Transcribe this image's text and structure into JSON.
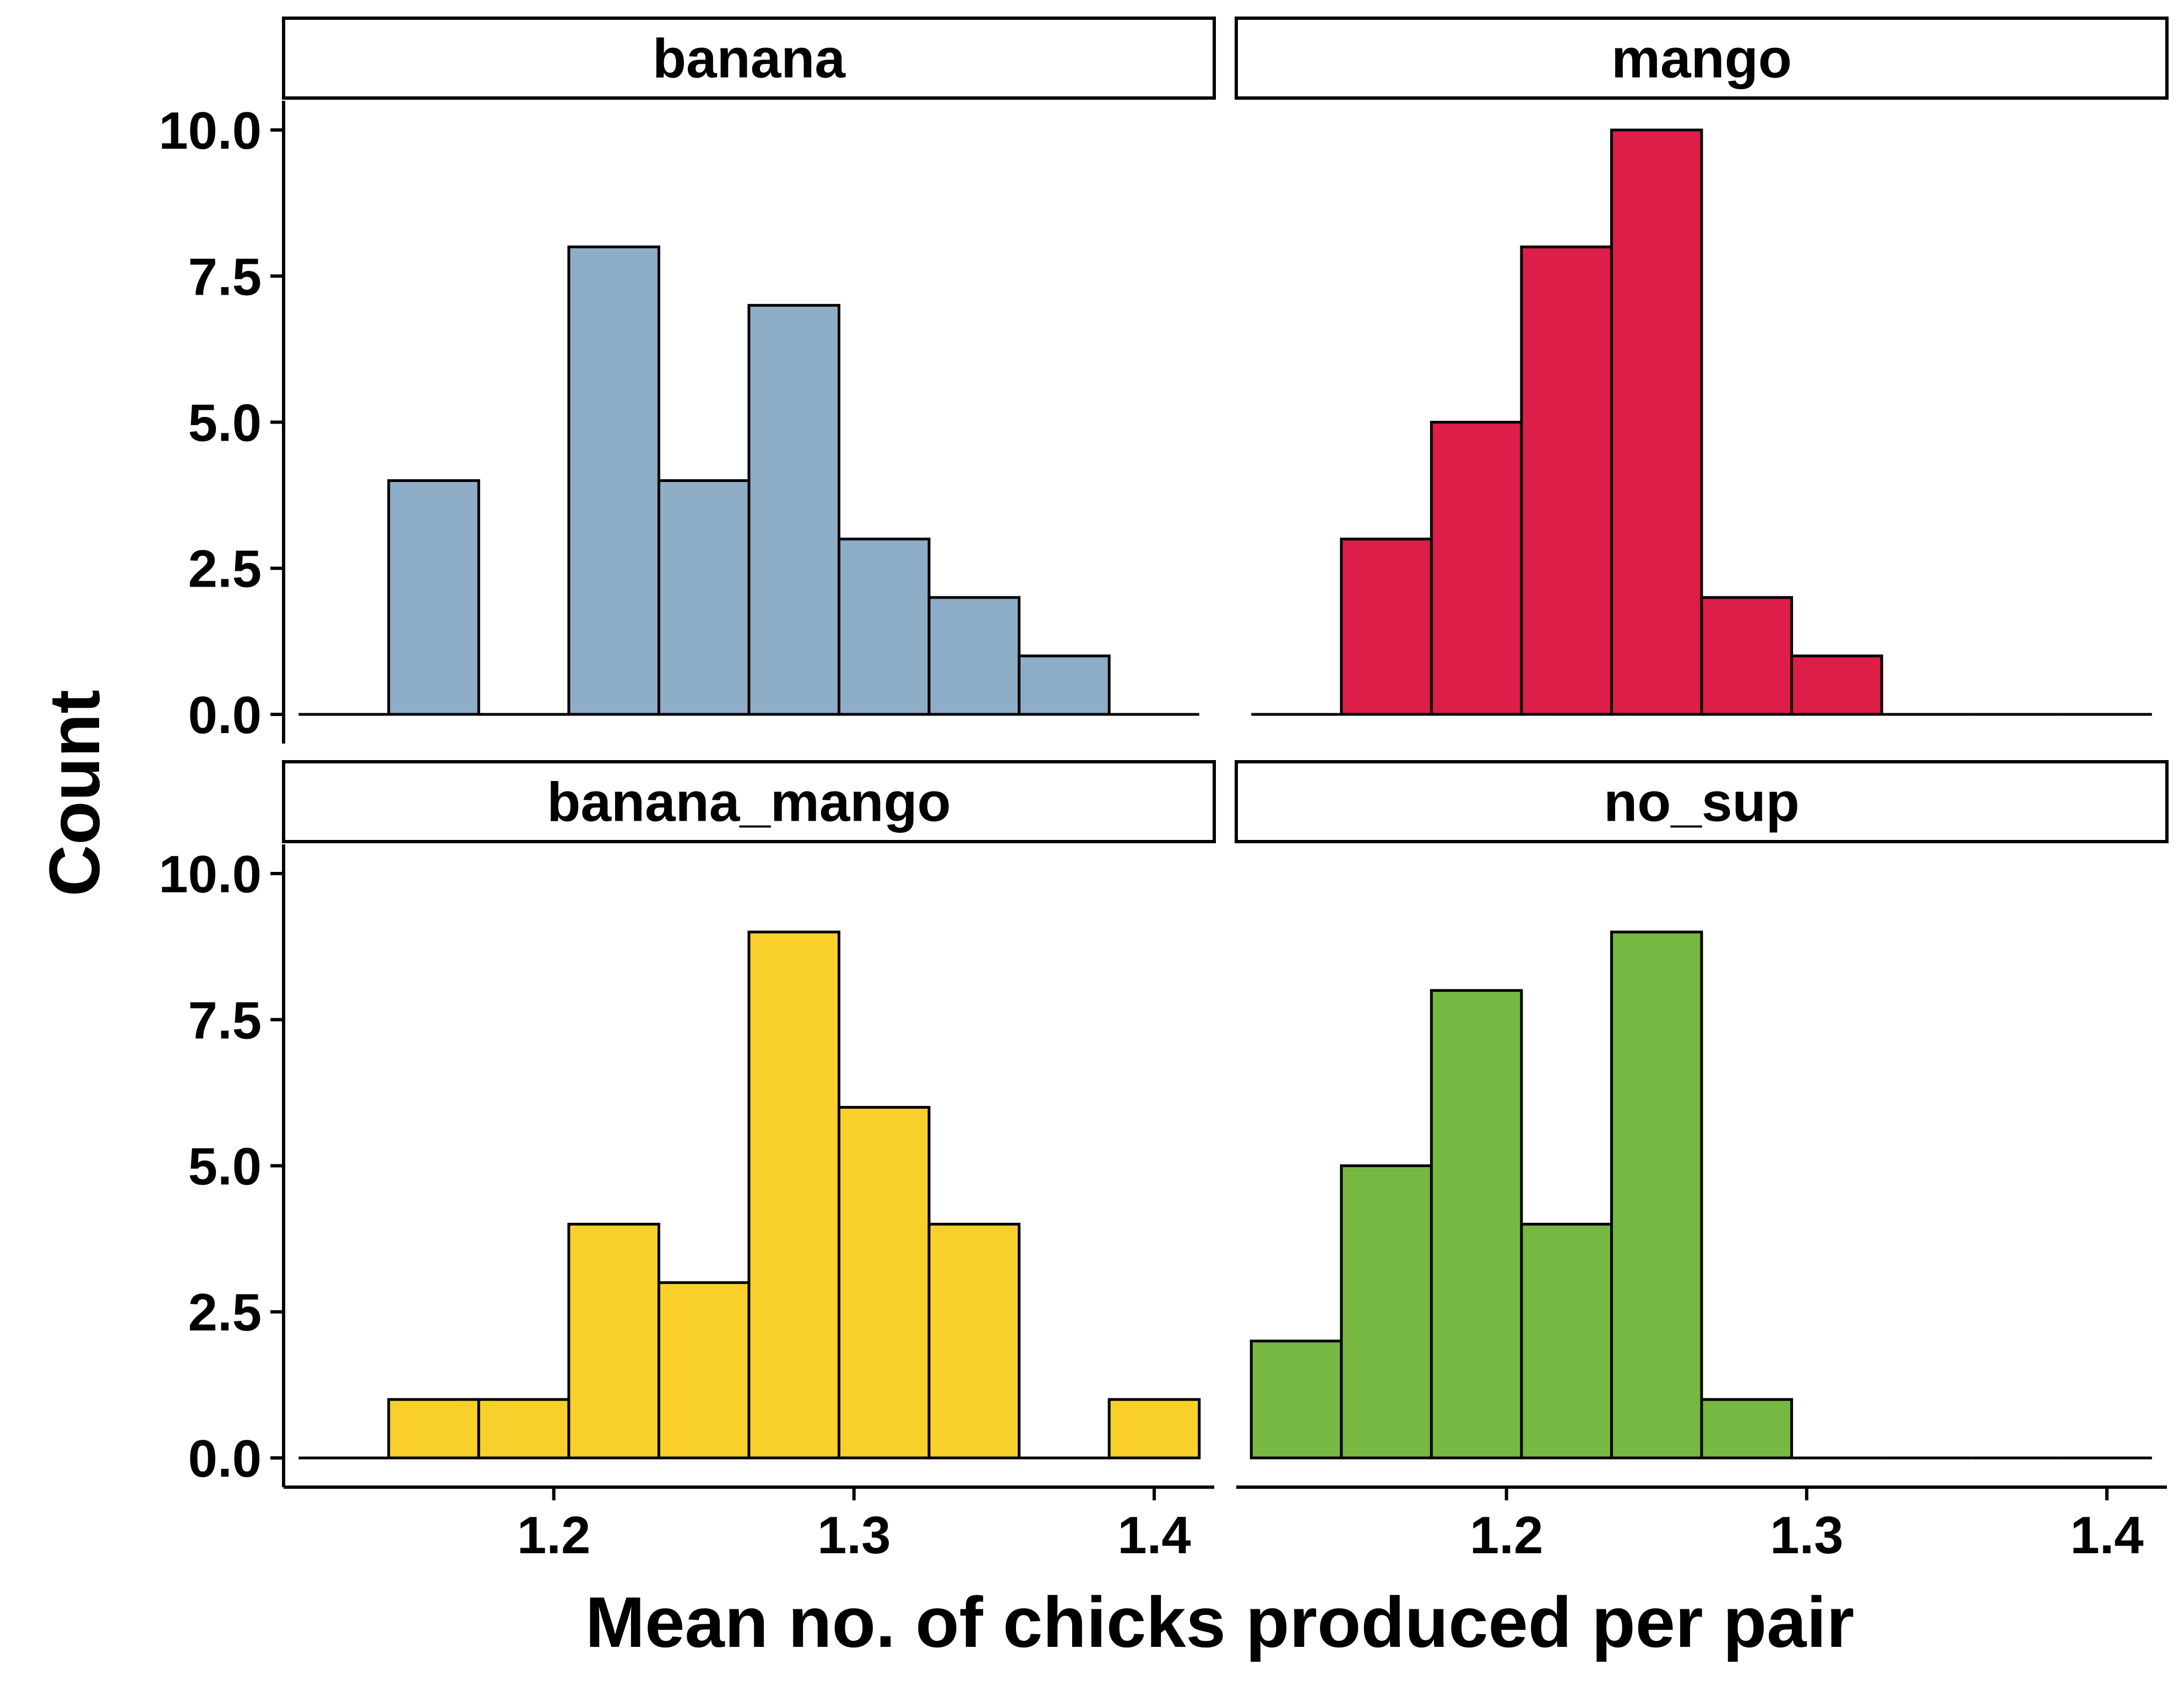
{
  "chart_data": {
    "type": "bar",
    "subtype": "faceted-histogram",
    "xlabel": "Mean no. of chicks produced per pair",
    "ylabel": "Count",
    "xlim": [
      1.11,
      1.42
    ],
    "ylim": [
      -0.5,
      10.5
    ],
    "x_ticks": [
      1.2,
      1.3,
      1.4
    ],
    "x_tick_labels": [
      "1.2",
      "1.3",
      "1.4"
    ],
    "y_ticks": [
      0,
      2.5,
      5,
      7.5,
      10
    ],
    "y_tick_labels": [
      "0.0",
      "2.5",
      "5.0",
      "7.5",
      "10.0"
    ],
    "bin_width": 0.03,
    "bin_centers": [
      1.13,
      1.16,
      1.19,
      1.22,
      1.25,
      1.28,
      1.31,
      1.34,
      1.37,
      1.4
    ],
    "grid": false,
    "legend": "none",
    "edge_color": "#000000",
    "facets": [
      {
        "name": "banana",
        "color": "#8EAEC7",
        "values": [
          0,
          4,
          0,
          8,
          4,
          7,
          3,
          2,
          1,
          0
        ]
      },
      {
        "name": "mango",
        "color": "#DC1E48",
        "values": [
          0,
          3,
          5,
          8,
          10,
          2,
          1,
          0,
          0,
          0
        ]
      },
      {
        "name": "banana_mango",
        "color": "#F9D02B",
        "values": [
          0,
          1,
          1,
          4,
          3,
          9,
          6,
          4,
          0,
          1
        ]
      },
      {
        "name": "no_sup",
        "color": "#77B843",
        "values": [
          2,
          5,
          8,
          4,
          9,
          1,
          0,
          0,
          0,
          0
        ]
      }
    ]
  }
}
